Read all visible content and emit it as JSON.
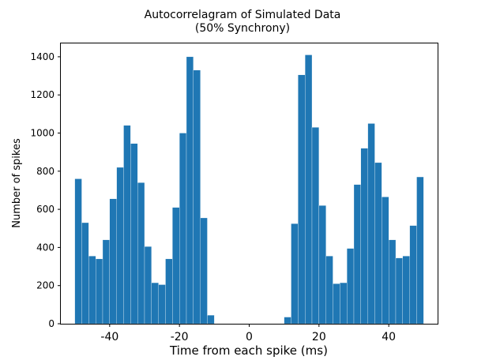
{
  "chart_data": {
    "type": "bar",
    "title_line1": "Autocorrelagram of Simulated Data",
    "title_line2": "(50% Synchrony)",
    "xlabel": "Time from each spike (ms)",
    "ylabel": "Number of spikes",
    "xlim": [
      -54,
      54
    ],
    "ylim": [
      0,
      1470
    ],
    "bin_width": 2,
    "x_ticks": [
      {
        "value": -40,
        "label": "-40"
      },
      {
        "value": -20,
        "label": "-20"
      },
      {
        "value": 0,
        "label": "0"
      },
      {
        "value": 20,
        "label": "20"
      },
      {
        "value": 40,
        "label": "40"
      }
    ],
    "y_ticks": [
      {
        "value": 0,
        "label": "0"
      },
      {
        "value": 200,
        "label": "200"
      },
      {
        "value": 400,
        "label": "400"
      },
      {
        "value": 600,
        "label": "600"
      },
      {
        "value": 800,
        "label": "800"
      },
      {
        "value": 1000,
        "label": "1000"
      },
      {
        "value": 1200,
        "label": "1200"
      },
      {
        "value": 1400,
        "label": "1400"
      }
    ],
    "bin_starts": [
      -50,
      -48,
      -46,
      -44,
      -42,
      -40,
      -38,
      -36,
      -34,
      -32,
      -30,
      -28,
      -26,
      -24,
      -22,
      -20,
      -18,
      -16,
      -14,
      -12,
      -10,
      -8,
      -6,
      -4,
      -2,
      0,
      2,
      4,
      6,
      8,
      10,
      12,
      14,
      16,
      18,
      20,
      22,
      24,
      26,
      28,
      30,
      32,
      34,
      36,
      38,
      40,
      42,
      44,
      46,
      48
    ],
    "values": [
      760,
      530,
      355,
      340,
      440,
      655,
      820,
      1040,
      945,
      740,
      405,
      215,
      205,
      340,
      610,
      1000,
      1400,
      1330,
      555,
      45,
      0,
      0,
      0,
      0,
      0,
      0,
      0,
      0,
      0,
      0,
      35,
      525,
      1305,
      1410,
      1030,
      620,
      355,
      210,
      215,
      395,
      730,
      920,
      1050,
      845,
      665,
      440,
      345,
      355,
      515,
      770
    ],
    "bar_color": "#1f77b4",
    "grid": false,
    "legend": "none"
  }
}
